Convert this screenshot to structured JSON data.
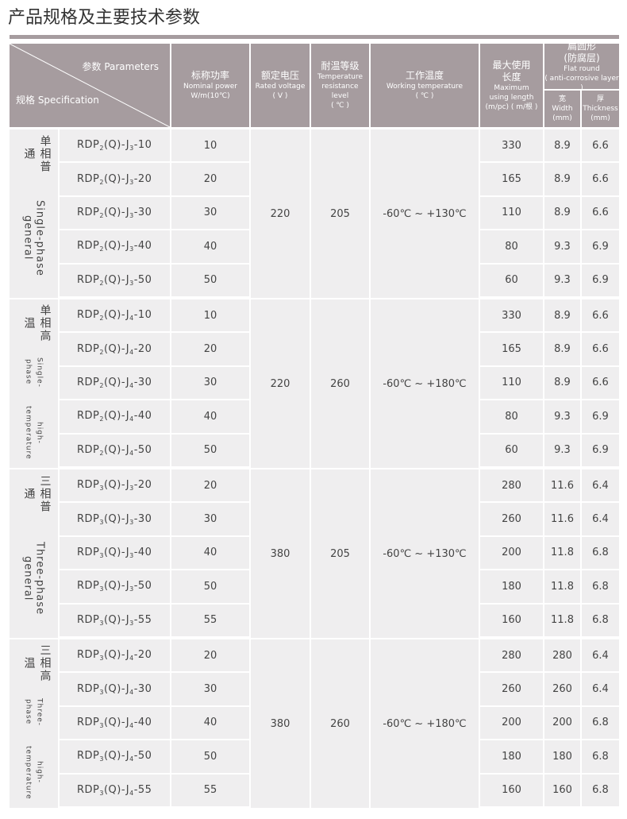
{
  "title": "产品规格及主要技术参数",
  "header": {
    "corner": {
      "top": "参数 Parameters",
      "bottom": "规格 Specification"
    },
    "columns": [
      {
        "zh": "标称功率",
        "en": "Nominal power",
        "unit": "W/m(10℃)"
      },
      {
        "zh": "额定电压",
        "en": "Rated voltage",
        "unit": "( V )"
      },
      {
        "zh": "耐温等级",
        "en": "Temperature resistance level",
        "unit": "( ℃ )"
      },
      {
        "zh": "工作温度",
        "en": "Working temperature",
        "unit": "( ℃ )"
      },
      {
        "zh": "最大使用长度",
        "en": "Maximum using length",
        "unit": "(m/pc) ( m/根 )"
      }
    ],
    "flat_round": {
      "zh": "扁圆形",
      "zh2": "(防腐层)",
      "en": "Flat round",
      "en2": "( anti-corrosive layer )",
      "width": {
        "zh": "宽",
        "en": "Width",
        "unit": "(mm)"
      },
      "thickness": {
        "zh": "厚",
        "en": "Thickness",
        "unit": "(mm)"
      }
    }
  },
  "groups": [
    {
      "zh": "单相普通",
      "en": [
        "Single-phase general"
      ],
      "voltage": 220,
      "temp_level": 205,
      "working_temp": "-60℃ ~ +130℃",
      "rows": [
        {
          "model": [
            "RDP",
            "2",
            "(Q)-J",
            "3",
            "-10"
          ],
          "power": 10,
          "length": 330,
          "width": 8.9,
          "thickness": 6.6
        },
        {
          "model": [
            "RDP",
            "2",
            "(Q)-J",
            "3",
            "-20"
          ],
          "power": 20,
          "length": 165,
          "width": 8.9,
          "thickness": 6.6
        },
        {
          "model": [
            "RDP",
            "2",
            "(Q)-J",
            "3",
            "-30"
          ],
          "power": 30,
          "length": 110,
          "width": 8.9,
          "thickness": 6.6
        },
        {
          "model": [
            "RDP",
            "2",
            "(Q)-J",
            "3",
            "-40"
          ],
          "power": 40,
          "length": 80,
          "width": 9.3,
          "thickness": 6.9
        },
        {
          "model": [
            "RDP",
            "2",
            "(Q)-J",
            "3",
            "-50"
          ],
          "power": 50,
          "length": 60,
          "width": 9.3,
          "thickness": 6.9
        }
      ]
    },
    {
      "zh": "单相高温",
      "en": [
        "Single-phase",
        "high-temperature"
      ],
      "voltage": 220,
      "temp_level": 260,
      "working_temp": "-60℃ ~ +180℃",
      "rows": [
        {
          "model": [
            "RDP",
            "2",
            "(Q)-J",
            "4",
            "-10"
          ],
          "power": 10,
          "length": 330,
          "width": 8.9,
          "thickness": 6.6
        },
        {
          "model": [
            "RDP",
            "2",
            "(Q)-J",
            "4",
            "-20"
          ],
          "power": 20,
          "length": 165,
          "width": 8.9,
          "thickness": 6.6
        },
        {
          "model": [
            "RDP",
            "2",
            "(Q)-J",
            "4",
            "-30"
          ],
          "power": 30,
          "length": 110,
          "width": 8.9,
          "thickness": 6.6
        },
        {
          "model": [
            "RDP",
            "2",
            "(Q)-J",
            "4",
            "-40"
          ],
          "power": 40,
          "length": 80,
          "width": 9.3,
          "thickness": 6.9
        },
        {
          "model": [
            "RDP",
            "2",
            "(Q)-J",
            "4",
            "-50"
          ],
          "power": 50,
          "length": 60,
          "width": 9.3,
          "thickness": 6.9
        }
      ]
    },
    {
      "zh": "三相普通",
      "en": [
        "Three-phase general"
      ],
      "voltage": 380,
      "temp_level": 205,
      "working_temp": "-60℃ ~ +130℃",
      "rows": [
        {
          "model": [
            "RDP",
            "3",
            "(Q)-J",
            "3",
            "-20"
          ],
          "power": 20,
          "length": 280,
          "width": 11.6,
          "thickness": 6.4
        },
        {
          "model": [
            "RDP",
            "3",
            "(Q)-J",
            "3",
            "-30"
          ],
          "power": 30,
          "length": 260,
          "width": 11.6,
          "thickness": 6.4
        },
        {
          "model": [
            "RDP",
            "3",
            "(Q)-J",
            "3",
            "-40"
          ],
          "power": 40,
          "length": 200,
          "width": 11.8,
          "thickness": 6.8
        },
        {
          "model": [
            "RDP",
            "3",
            "(Q)-J",
            "3",
            "-50"
          ],
          "power": 50,
          "length": 180,
          "width": 11.8,
          "thickness": 6.8
        },
        {
          "model": [
            "RDP",
            "3",
            "(Q)-J",
            "3",
            "-55"
          ],
          "power": 55,
          "length": 160,
          "width": 11.8,
          "thickness": 6.8
        }
      ]
    },
    {
      "zh": "三相高温",
      "en": [
        "Three-phase",
        "high-temperature"
      ],
      "voltage": 380,
      "temp_level": 260,
      "working_temp": "-60℃ ~ +180℃",
      "rows": [
        {
          "model": [
            "RDP",
            "3",
            "(Q)-J",
            "4",
            "-20"
          ],
          "power": 20,
          "length": 280,
          "width": 280,
          "thickness": 6.4
        },
        {
          "model": [
            "RDP",
            "3",
            "(Q)-J",
            "4",
            "-30"
          ],
          "power": 30,
          "length": 260,
          "width": 260,
          "thickness": 6.4
        },
        {
          "model": [
            "RDP",
            "3",
            "(Q)-J",
            "4",
            "-40"
          ],
          "power": 40,
          "length": 200,
          "width": 200,
          "thickness": 6.8
        },
        {
          "model": [
            "RDP",
            "3",
            "(Q)-J",
            "4",
            "-50"
          ],
          "power": 50,
          "length": 180,
          "width": 180,
          "thickness": 6.8
        },
        {
          "model": [
            "RDP",
            "3",
            "(Q)-J",
            "4",
            "-55"
          ],
          "power": 55,
          "length": 160,
          "width": 160,
          "thickness": 6.8
        }
      ]
    }
  ]
}
